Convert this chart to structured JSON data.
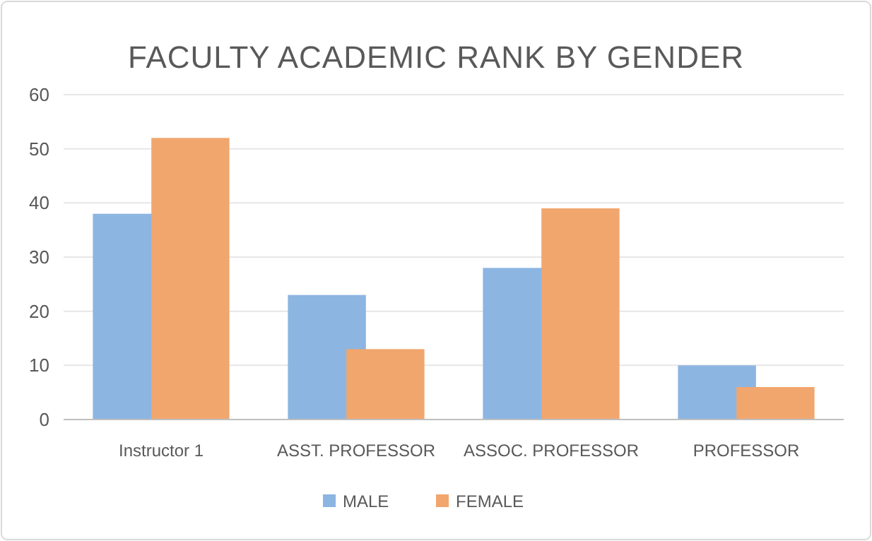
{
  "chart_data": {
    "type": "bar",
    "title": "FACULTY ACADEMIC RANK BY GENDER",
    "categories": [
      "Instructor 1",
      "ASST. PROFESSOR",
      "ASSOC. PROFESSOR",
      "PROFESSOR"
    ],
    "series": [
      {
        "name": "MALE",
        "color": "#8cb5e1",
        "values": [
          38,
          23,
          28,
          10
        ]
      },
      {
        "name": "FEMALE",
        "color": "#f1a66e",
        "values": [
          52,
          13,
          39,
          6
        ]
      }
    ],
    "ylim": [
      0,
      60
    ],
    "yticks": [
      0,
      10,
      20,
      30,
      40,
      50,
      60
    ],
    "grid": "y",
    "legend": "bottom"
  }
}
